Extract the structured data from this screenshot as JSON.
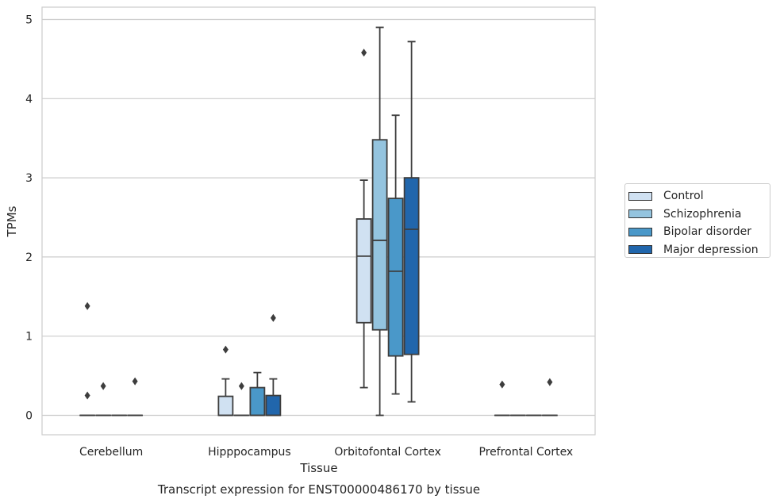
{
  "chart_data": {
    "type": "box",
    "caption": "Transcript expression for ENST00000486170 by tissue",
    "xlabel": "Tissue",
    "ylabel": "TPMs",
    "ylim": [
      -0.25,
      5.15
    ],
    "yticks": [
      0,
      1,
      2,
      3,
      4,
      5
    ],
    "grid": "horizontal",
    "legend_position": "right",
    "categories": [
      "Cerebellum",
      "Hipppocampus",
      "Orbitofontal Cortex",
      "Prefrontal Cortex"
    ],
    "series": [
      {
        "name": "Control",
        "color": "#d0e1f2",
        "boxes": [
          {
            "q1": 0,
            "median": 0,
            "q3": 0,
            "whislo": 0,
            "whishi": 0,
            "fliers": [
              1.38,
              0.25
            ]
          },
          {
            "q1": 0,
            "median": 0,
            "q3": 0.24,
            "whislo": 0,
            "whishi": 0.46,
            "fliers": [
              0.83
            ]
          },
          {
            "q1": 1.17,
            "median": 2.01,
            "q3": 2.48,
            "whislo": 0.35,
            "whishi": 2.97,
            "fliers": [
              4.58
            ]
          },
          {
            "q1": 0,
            "median": 0,
            "q3": 0,
            "whislo": 0,
            "whishi": 0,
            "fliers": [
              0.39
            ]
          }
        ]
      },
      {
        "name": "Schizophrenia",
        "color": "#94c4df",
        "boxes": [
          {
            "q1": 0,
            "median": 0,
            "q3": 0,
            "whislo": 0,
            "whishi": 0,
            "fliers": [
              0.37
            ]
          },
          {
            "q1": 0,
            "median": 0,
            "q3": 0,
            "whislo": 0,
            "whishi": 0,
            "fliers": [
              0.37
            ]
          },
          {
            "q1": 1.08,
            "median": 2.21,
            "q3": 3.48,
            "whislo": 0,
            "whishi": 4.9,
            "fliers": []
          },
          {
            "q1": 0,
            "median": 0,
            "q3": 0,
            "whislo": 0,
            "whishi": 0,
            "fliers": []
          }
        ]
      },
      {
        "name": "Bipolar disorder",
        "color": "#4a98c9",
        "boxes": [
          {
            "q1": 0,
            "median": 0,
            "q3": 0,
            "whislo": 0,
            "whishi": 0,
            "fliers": []
          },
          {
            "q1": 0,
            "median": 0,
            "q3": 0.35,
            "whislo": 0,
            "whishi": 0.54,
            "fliers": []
          },
          {
            "q1": 0.75,
            "median": 1.82,
            "q3": 2.74,
            "whislo": 0.27,
            "whishi": 3.79,
            "fliers": []
          },
          {
            "q1": 0,
            "median": 0,
            "q3": 0,
            "whislo": 0,
            "whishi": 0,
            "fliers": []
          }
        ]
      },
      {
        "name": "Major depression",
        "color": "#2166ac",
        "boxes": [
          {
            "q1": 0,
            "median": 0,
            "q3": 0,
            "whislo": 0,
            "whishi": 0,
            "fliers": [
              0.43
            ]
          },
          {
            "q1": 0,
            "median": 0,
            "q3": 0.25,
            "whislo": 0,
            "whishi": 0.46,
            "fliers": [
              1.23
            ]
          },
          {
            "q1": 0.77,
            "median": 2.35,
            "q3": 3.0,
            "whislo": 0.17,
            "whishi": 4.72,
            "fliers": []
          },
          {
            "q1": 0,
            "median": 0,
            "q3": 0,
            "whislo": 0,
            "whishi": 0,
            "fliers": [
              0.42
            ]
          }
        ]
      }
    ]
  }
}
